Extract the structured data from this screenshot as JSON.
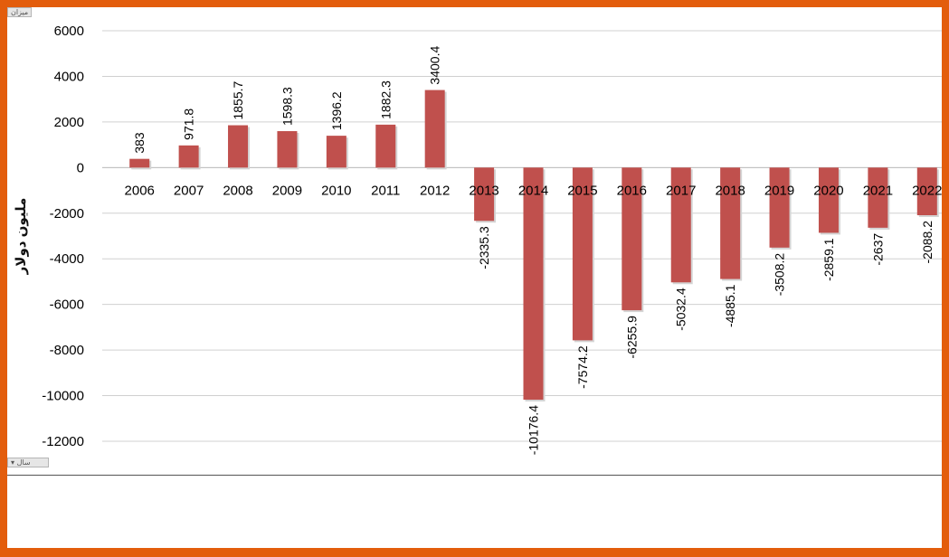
{
  "buttons": {
    "top": "ميزان",
    "bottom": "سال"
  },
  "chart_data": {
    "type": "bar",
    "title": "",
    "xlabel": "",
    "ylabel": "مليون دولار",
    "ylim": [
      -12000,
      6000
    ],
    "yticks": [
      6000,
      4000,
      2000,
      0,
      -2000,
      -4000,
      -6000,
      -8000,
      -10000,
      -12000
    ],
    "grid": true,
    "legend": "none",
    "bar_color": "#c0504d",
    "categories": [
      "2006",
      "2007",
      "2008",
      "2009",
      "2010",
      "2011",
      "2012",
      "2013",
      "2014",
      "2015",
      "2016",
      "2017",
      "2018",
      "2019",
      "2020",
      "2021",
      "2022"
    ],
    "values": [
      383,
      971.8,
      1855.7,
      1598.3,
      1396.2,
      1882.3,
      3400.4,
      -2335.3,
      -10176.4,
      -7574.2,
      -6255.9,
      -5032.4,
      -4885.1,
      -3508.2,
      -2859.1,
      -2637,
      -2088.2
    ]
  }
}
